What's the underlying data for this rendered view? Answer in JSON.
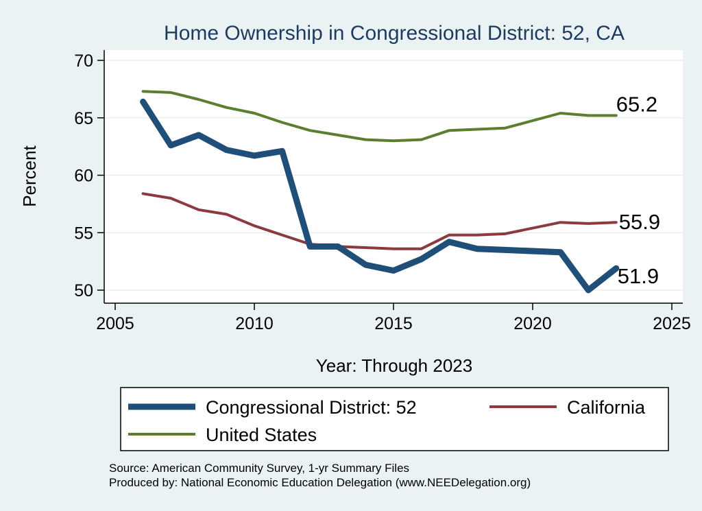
{
  "chart_data": {
    "type": "line",
    "title": "Home Ownership in Congressional District:  52, CA",
    "xlabel": "Year: Through 2023",
    "ylabel": "Percent",
    "xlim": [
      2005,
      2025
    ],
    "ylim": [
      50,
      70
    ],
    "x_ticks": [
      2005,
      2010,
      2015,
      2020,
      2025
    ],
    "y_ticks": [
      50,
      55,
      60,
      65,
      70
    ],
    "grid": "horizontal",
    "legend_position": "bottom",
    "x": [
      2006,
      2007,
      2008,
      2009,
      2010,
      2011,
      2012,
      2013,
      2014,
      2015,
      2016,
      2017,
      2018,
      2019,
      2021,
      2022,
      2023
    ],
    "series": [
      {
        "name": "Congressional District:  52",
        "color": "#1f4e79",
        "values": [
          66.4,
          62.6,
          63.5,
          62.2,
          61.7,
          62.1,
          53.8,
          53.8,
          52.2,
          51.7,
          52.7,
          54.2,
          53.6,
          53.5,
          53.3,
          50.0,
          51.9
        ],
        "end_label": "51.9"
      },
      {
        "name": "California",
        "color": "#8b3a3e",
        "values": [
          58.4,
          58.0,
          57.0,
          56.6,
          55.6,
          54.8,
          54.0,
          53.8,
          53.7,
          53.6,
          53.6,
          54.8,
          54.8,
          54.9,
          55.9,
          55.8,
          55.9
        ],
        "end_label": "55.9"
      },
      {
        "name": "United States",
        "color": "#5a7f30",
        "values": [
          67.3,
          67.2,
          66.6,
          65.9,
          65.4,
          64.6,
          63.9,
          63.5,
          63.1,
          63.0,
          63.1,
          63.9,
          64.0,
          64.1,
          65.4,
          65.2,
          65.2
        ],
        "end_label": "65.2"
      }
    ],
    "source_lines": [
      "Source: American Community Survey, 1-yr Summary Files",
      "Produced by: National Economic Education Delegation (www.NEEDelegation.org)"
    ]
  }
}
